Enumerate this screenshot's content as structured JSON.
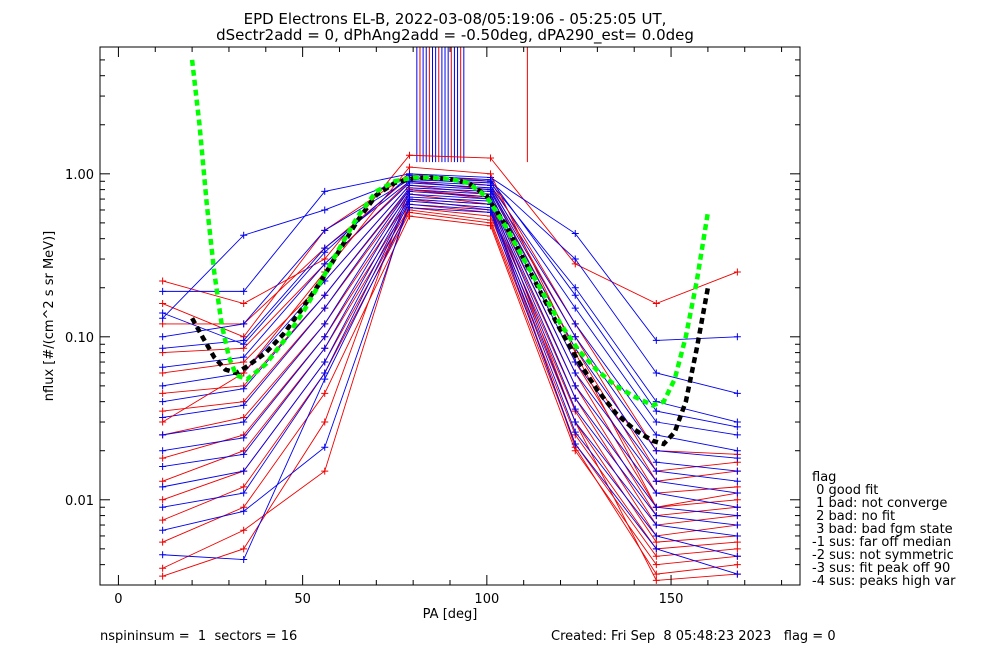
{
  "title_line1": "EPD Electrons EL-B, 2022-03-08/05:19:06 - 05:25:05 UT,",
  "title_line2": "dSectr2add = 0, dPhAng2add = -0.50deg, dPA290_est=   0.0deg",
  "footer": {
    "left": "nspininsum =  1  sectors = 16",
    "right": "Created: Fri Sep  8 05:48:23 2023   flag = 0"
  },
  "legend": {
    "title": "flag",
    "items": [
      " 0 good fit",
      " 1 bad: not converge",
      " 2 bad: no fit",
      " 3 bad: bad fgm state",
      "-1 sus: far off median",
      "-2 sus: not symmetric",
      "-3 sus: fit peak off 90",
      "-4 sus: peaks high var"
    ]
  },
  "colors": {
    "red": "#ee0000",
    "blue": "#0000ee",
    "green": "#00ff00",
    "black": "#000000"
  },
  "chart_data": {
    "type": "line",
    "xlabel": "PA [deg]",
    "ylabel": "nflux [#/(cm^2 s sr MeV)]",
    "xlim": [
      -5,
      185
    ],
    "ylim": [
      0.003,
      6
    ],
    "yscale": "log",
    "x_ticks": [
      0,
      50,
      100,
      150
    ],
    "y_ticks": [
      0.01,
      0.1,
      1.0
    ],
    "y_tick_labels": [
      "0.01",
      "0.10",
      "1.00"
    ],
    "pa_bins": [
      12,
      34,
      56,
      79,
      101,
      124,
      146,
      168
    ],
    "series_red": [
      [
        0.22,
        0.16,
        0.3,
        1.3,
        1.25,
        0.28,
        0.16,
        0.25
      ],
      [
        0.16,
        0.1,
        0.45,
        1.0,
        0.9,
        0.12,
        0.02,
        0.019
      ],
      [
        0.12,
        0.12,
        0.35,
        0.95,
        0.85,
        0.1,
        0.015,
        0.017
      ],
      [
        0.08,
        0.085,
        0.28,
        0.9,
        0.8,
        0.085,
        0.013,
        0.015
      ],
      [
        0.06,
        0.07,
        0.22,
        0.85,
        0.75,
        0.07,
        0.011,
        0.012
      ],
      [
        0.045,
        0.05,
        0.18,
        0.8,
        0.7,
        0.06,
        0.009,
        0.01
      ],
      [
        0.035,
        0.04,
        0.15,
        0.75,
        0.65,
        0.05,
        0.008,
        0.009
      ],
      [
        0.025,
        0.032,
        0.12,
        0.7,
        0.6,
        0.042,
        0.007,
        0.008
      ],
      [
        0.018,
        0.025,
        0.1,
        0.65,
        0.58,
        0.035,
        0.006,
        0.007
      ],
      [
        0.013,
        0.02,
        0.085,
        0.62,
        0.55,
        0.03,
        0.0055,
        0.006
      ],
      [
        0.01,
        0.015,
        0.07,
        0.6,
        0.52,
        0.025,
        0.005,
        0.0055
      ],
      [
        0.0075,
        0.012,
        0.06,
        0.58,
        0.5,
        0.022,
        0.0045,
        0.005
      ],
      [
        0.0055,
        0.009,
        0.045,
        0.55,
        0.48,
        0.02,
        0.004,
        0.0045
      ],
      [
        0.0038,
        0.0065,
        0.015,
        0.7,
        0.65,
        0.021,
        0.0035,
        0.004
      ],
      [
        0.0034,
        0.005,
        0.03,
        0.8,
        0.72,
        0.03,
        0.0032,
        0.0035
      ],
      [
        0.03,
        0.06,
        0.25,
        1.1,
        1.0,
        0.08,
        0.009,
        0.011
      ]
    ],
    "series_blue": [
      [
        0.19,
        0.19,
        0.78,
        1.0,
        0.95,
        0.43,
        0.095,
        0.1
      ],
      [
        0.13,
        0.42,
        0.6,
        0.95,
        0.9,
        0.3,
        0.06,
        0.045
      ],
      [
        0.1,
        0.12,
        0.45,
        0.92,
        0.88,
        0.2,
        0.04,
        0.03
      ],
      [
        0.085,
        0.095,
        0.35,
        0.9,
        0.85,
        0.15,
        0.03,
        0.025
      ],
      [
        0.065,
        0.075,
        0.28,
        0.88,
        0.82,
        0.12,
        0.025,
        0.02
      ],
      [
        0.05,
        0.06,
        0.22,
        0.85,
        0.8,
        0.1,
        0.02,
        0.018
      ],
      [
        0.04,
        0.048,
        0.18,
        0.82,
        0.78,
        0.085,
        0.017,
        0.015
      ],
      [
        0.032,
        0.038,
        0.15,
        0.8,
        0.75,
        0.07,
        0.015,
        0.013
      ],
      [
        0.025,
        0.03,
        0.12,
        0.78,
        0.72,
        0.06,
        0.013,
        0.011
      ],
      [
        0.02,
        0.024,
        0.1,
        0.75,
        0.7,
        0.05,
        0.011,
        0.009
      ],
      [
        0.016,
        0.019,
        0.085,
        0.72,
        0.68,
        0.042,
        0.009,
        0.008
      ],
      [
        0.012,
        0.015,
        0.07,
        0.7,
        0.65,
        0.036,
        0.008,
        0.007
      ],
      [
        0.009,
        0.011,
        0.06,
        0.68,
        0.62,
        0.03,
        0.007,
        0.006
      ],
      [
        0.0065,
        0.0085,
        0.021,
        0.65,
        0.6,
        0.026,
        0.006,
        0.0045
      ],
      [
        0.0046,
        0.0043,
        0.055,
        0.62,
        0.58,
        0.022,
        0.005,
        0.0035
      ],
      [
        0.14,
        0.09,
        0.33,
        0.98,
        0.92,
        0.18,
        0.035,
        0.028
      ]
    ],
    "green_fit_x": [
      20,
      22,
      24,
      26,
      28,
      30,
      32,
      35,
      40,
      45,
      50,
      55,
      60,
      65,
      70,
      75,
      80,
      85,
      90,
      95,
      100,
      105,
      110,
      115,
      120,
      125,
      130,
      135,
      140,
      145,
      148,
      151,
      154,
      157,
      160
    ],
    "green_fit_y": [
      5.0,
      2.0,
      0.65,
      0.25,
      0.12,
      0.075,
      0.058,
      0.055,
      0.068,
      0.095,
      0.14,
      0.22,
      0.35,
      0.55,
      0.78,
      0.9,
      0.95,
      0.95,
      0.93,
      0.88,
      0.72,
      0.48,
      0.3,
      0.19,
      0.12,
      0.082,
      0.062,
      0.05,
      0.043,
      0.038,
      0.04,
      0.055,
      0.1,
      0.22,
      0.58
    ],
    "black_fit_x": [
      20,
      23,
      26,
      29,
      32,
      35,
      40,
      45,
      50,
      55,
      60,
      65,
      70,
      75,
      80,
      85,
      90,
      95,
      100,
      105,
      110,
      115,
      120,
      125,
      130,
      135,
      140,
      145,
      148,
      151,
      154,
      157,
      160
    ],
    "black_fit_y": [
      0.13,
      0.098,
      0.075,
      0.063,
      0.06,
      0.066,
      0.08,
      0.105,
      0.15,
      0.22,
      0.34,
      0.52,
      0.74,
      0.88,
      0.94,
      0.95,
      0.93,
      0.88,
      0.73,
      0.49,
      0.3,
      0.18,
      0.11,
      0.07,
      0.047,
      0.034,
      0.027,
      0.023,
      0.022,
      0.026,
      0.04,
      0.085,
      0.2
    ],
    "spike_pa_range": [
      81,
      94
    ],
    "spike_extra_red_x": 111,
    "spike_lower_flux": 1.18
  }
}
